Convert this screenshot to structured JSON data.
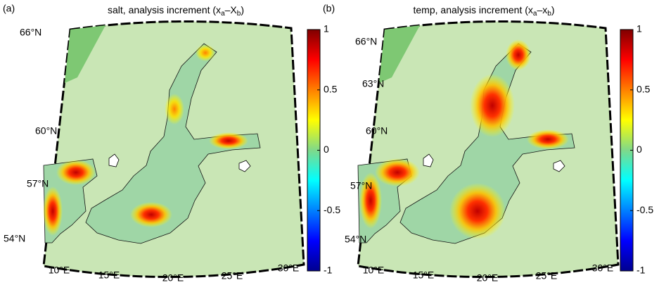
{
  "panels": [
    {
      "label": "(a)",
      "title_parts": [
        "salt, analysis increment (x",
        "a",
        "–X",
        "b",
        ")"
      ],
      "lat_labels": [
        "66°N",
        "60°N",
        "57°N",
        "54°N"
      ],
      "lon_labels": [
        "10°E",
        "15°E",
        "20°E",
        "25°E",
        "30°E"
      ],
      "colorbar": {
        "clim": [
          -1,
          1
        ],
        "ticks": [
          1,
          0.5,
          0,
          -0.5,
          -1
        ]
      }
    },
    {
      "label": "(b)",
      "title_parts": [
        "temp, analysis increment (x",
        "a",
        "–x",
        "b",
        ")"
      ],
      "lat_labels": [
        "66°N",
        "63°N",
        "60°N",
        "57°N",
        "54°N"
      ],
      "lon_labels": [
        "10°E",
        "15°E",
        "20°E",
        "25°E",
        "30°E"
      ],
      "colorbar": {
        "clim": [
          -1,
          1
        ],
        "ticks": [
          1,
          0.5,
          0,
          -0.5,
          -1
        ]
      }
    }
  ]
}
